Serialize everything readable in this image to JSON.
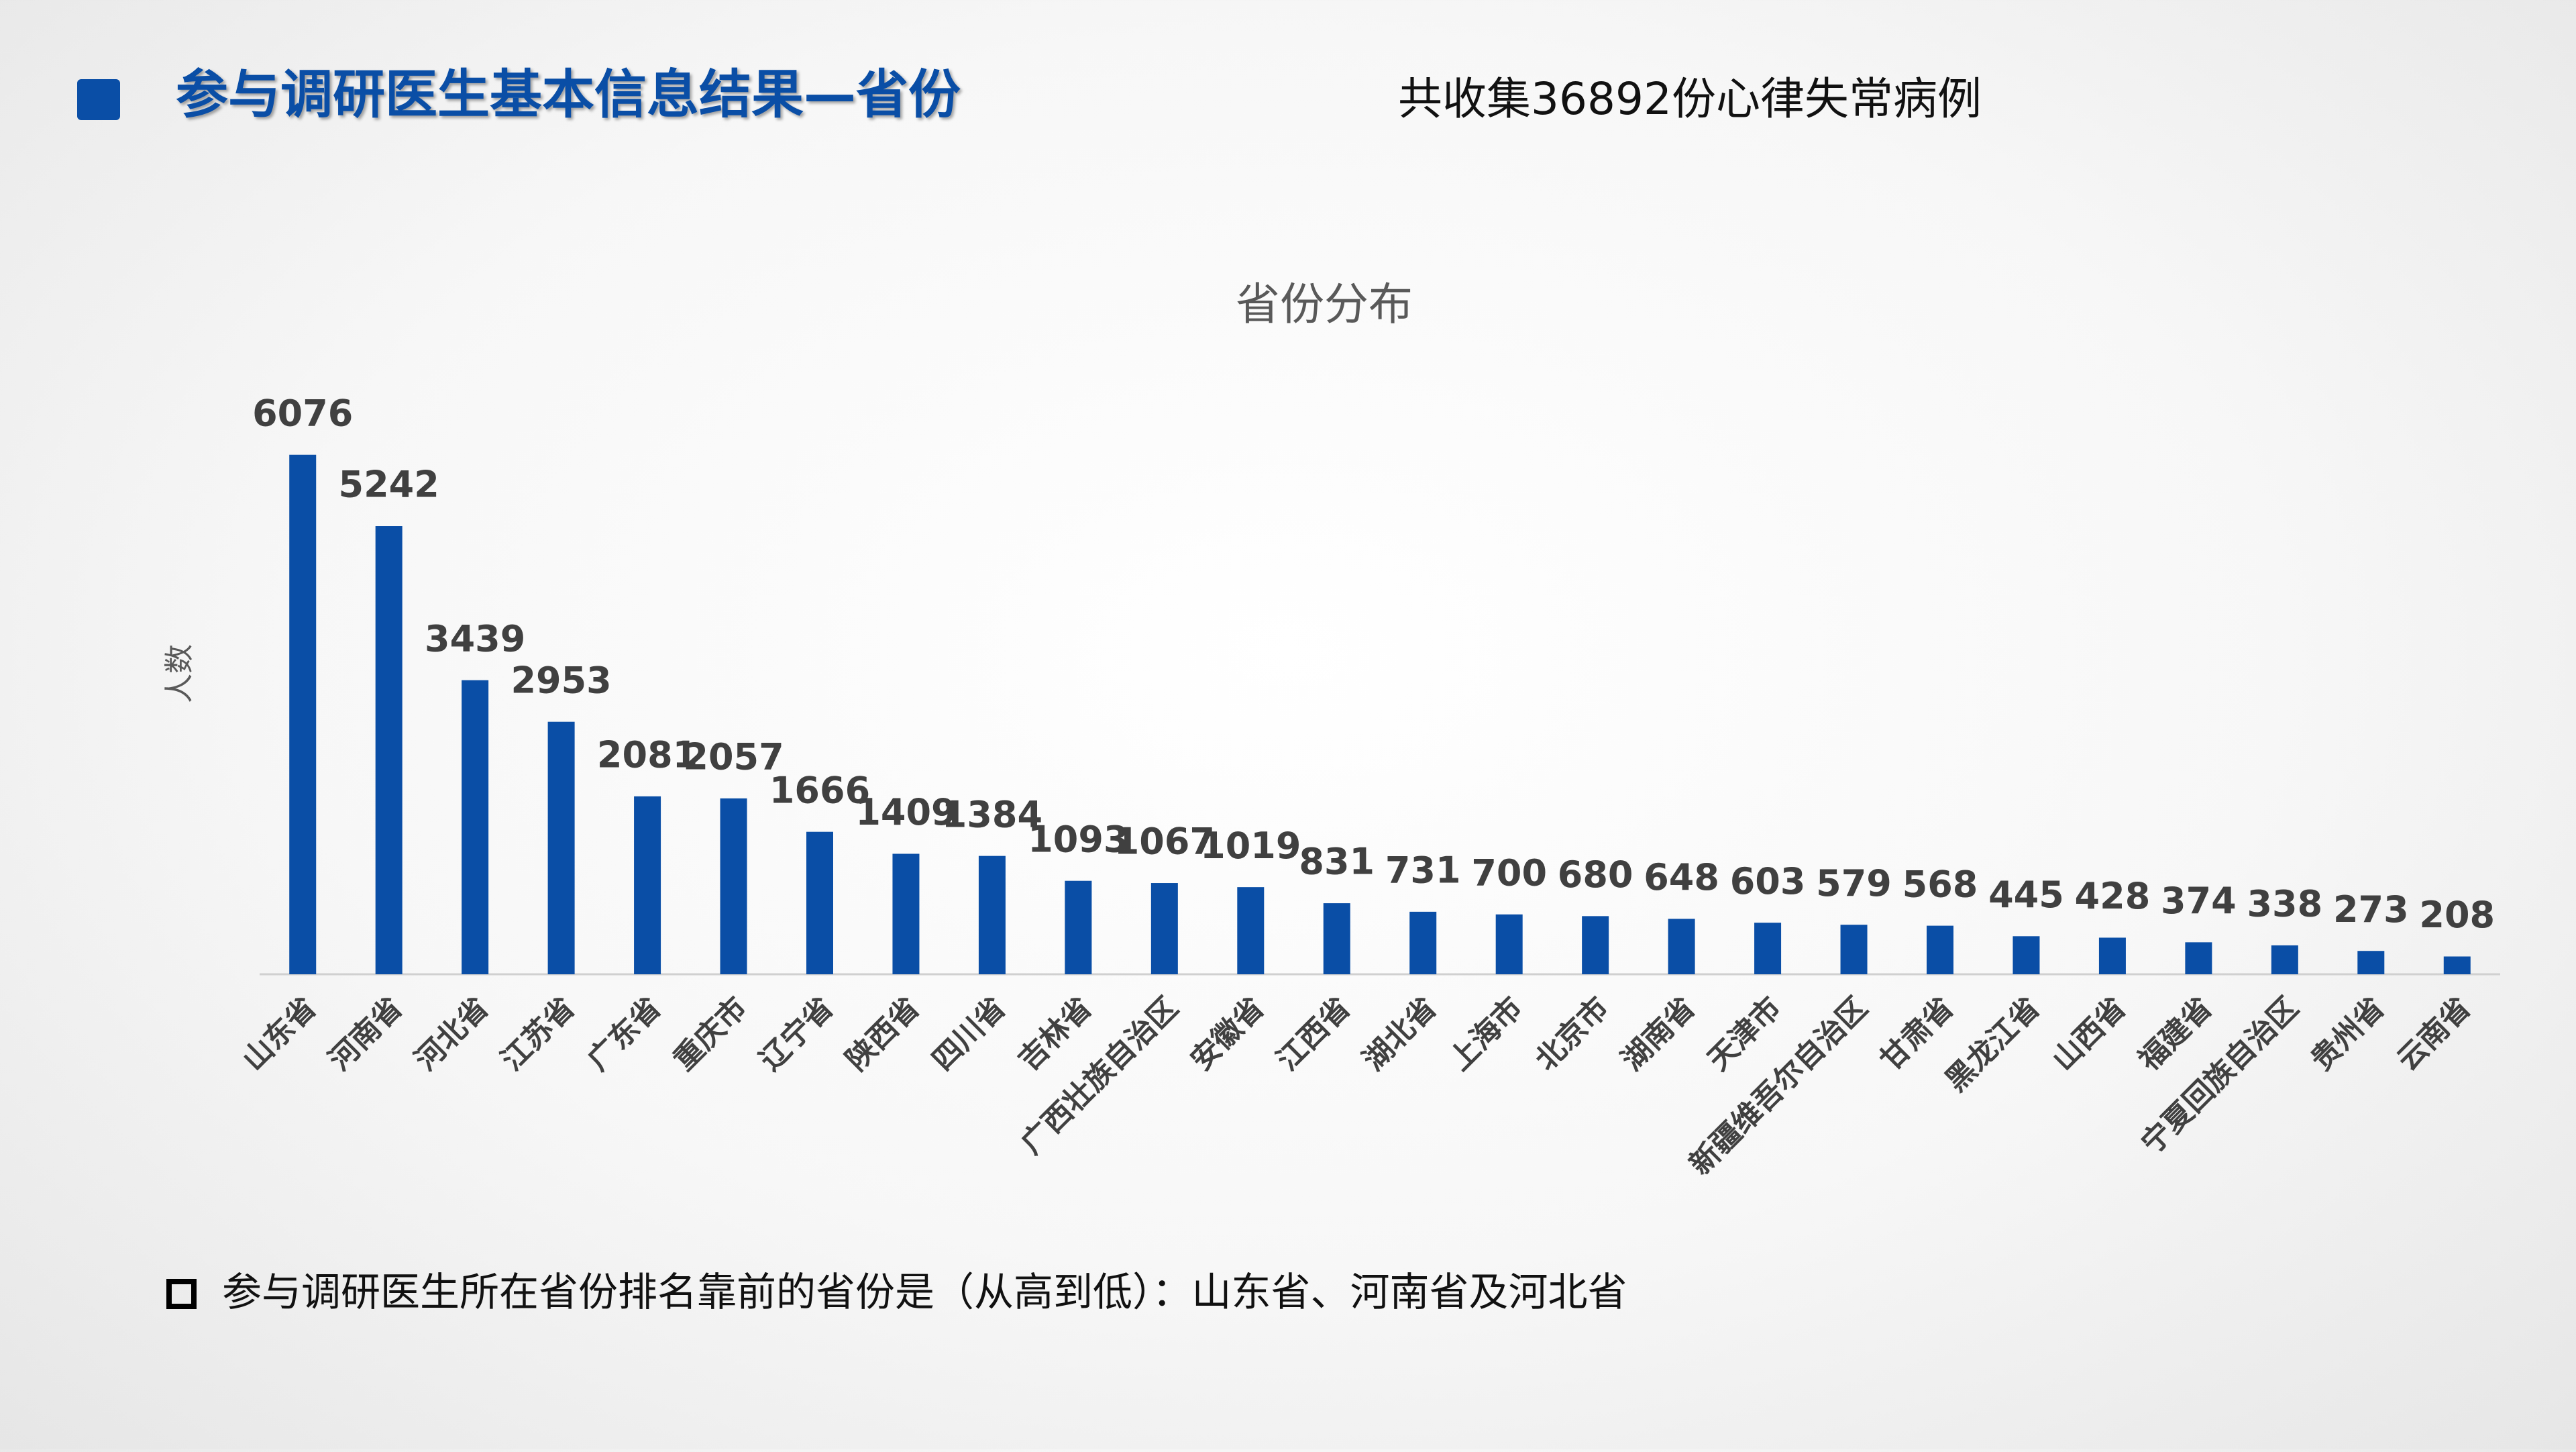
{
  "header": {
    "title": "参与调研医生基本信息结果—省份",
    "note": "共收集36892份心律失常病例"
  },
  "chart_data": {
    "type": "bar",
    "title": "省份分布",
    "y_label": "人数",
    "categories": [
      "山东省",
      "河南省",
      "河北省",
      "江苏省",
      "广东省",
      "重庆市",
      "辽宁省",
      "陕西省",
      "四川省",
      "吉林省",
      "广西壮族自治区",
      "安徽省",
      "江西省",
      "湖北省",
      "上海市",
      "北京市",
      "湖南省",
      "天津市",
      "新疆维吾尔自治区",
      "甘肃省",
      "黑龙江省",
      "山西省",
      "福建省",
      "宁夏回族自治区",
      "贵州省",
      "云南省"
    ],
    "values": [
      6076,
      5242,
      3439,
      2953,
      2081,
      2057,
      1666,
      1409,
      1384,
      1093,
      1067,
      1019,
      831,
      731,
      700,
      680,
      648,
      603,
      579,
      568,
      445,
      428,
      374,
      338,
      273,
      208
    ],
    "color": "#0a4ea6",
    "ylim": [
      0,
      7000
    ]
  },
  "footer": {
    "bullet": "参与调研医生所在省份排名靠前的省份是（从高到低）：山东省、河南省及河北省"
  }
}
